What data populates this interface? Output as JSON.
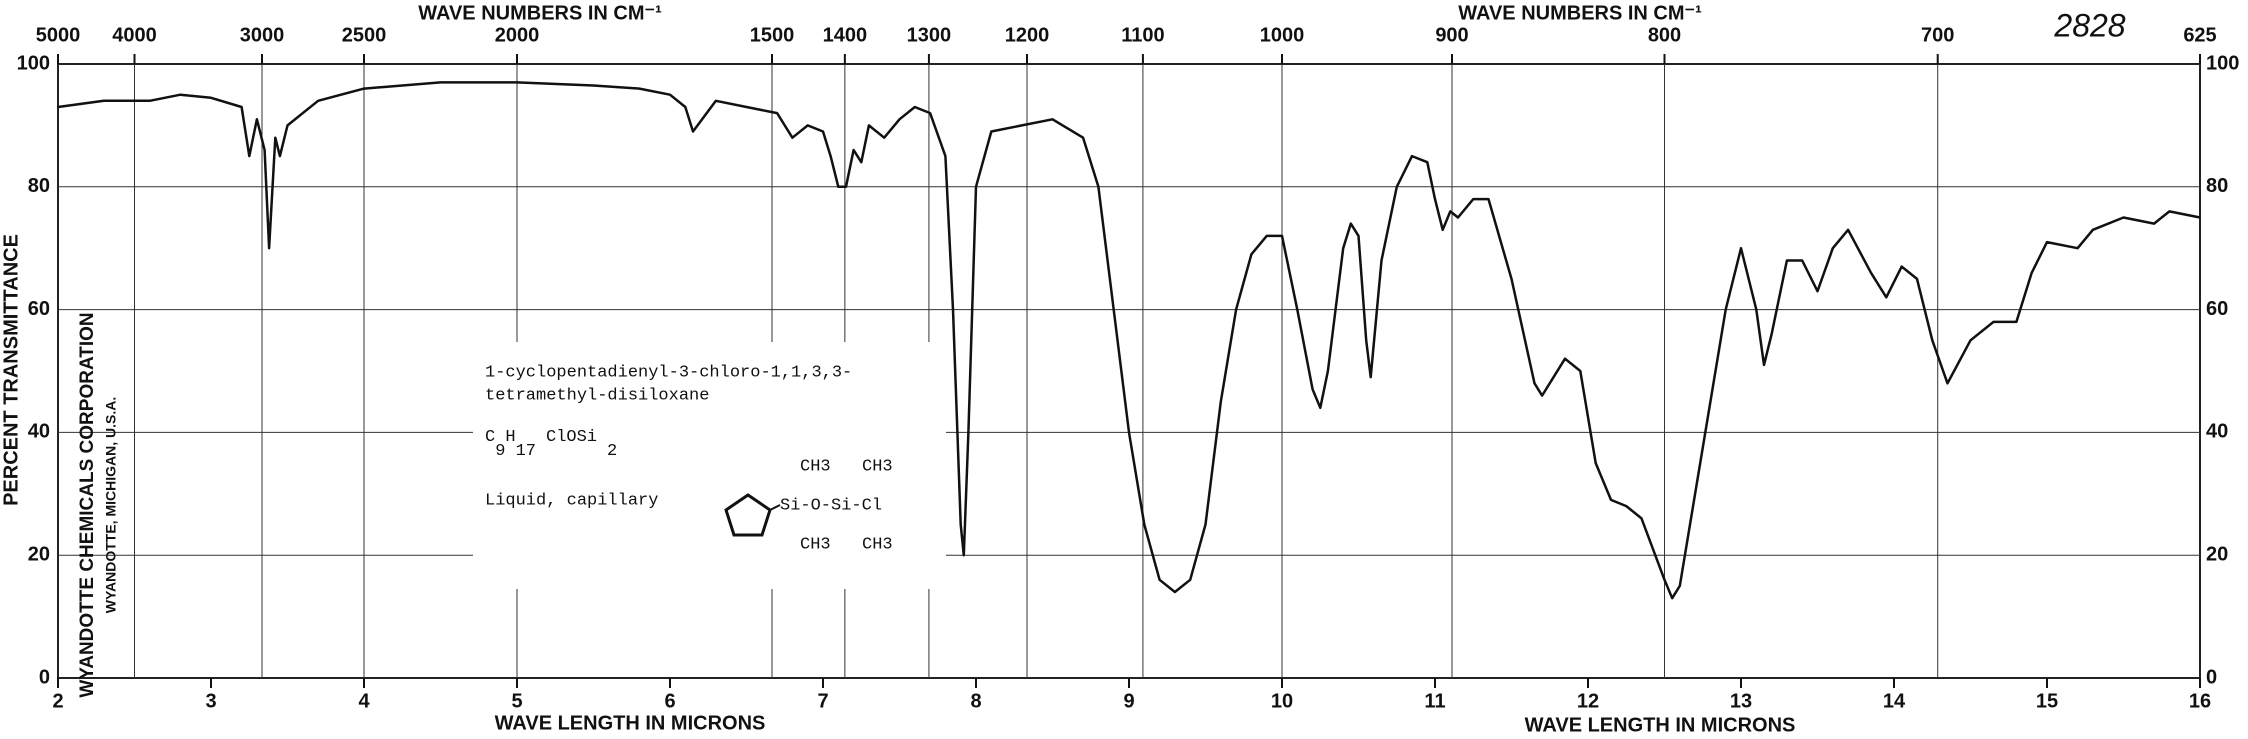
{
  "chart_data": {
    "type": "line",
    "color": "#111111",
    "x_label": "WAVE LENGTH IN MICRONS",
    "x_label_right": "WAVE LENGTH IN MICRONS",
    "top_label": "WAVE NUMBERS IN CM⁻¹",
    "top_label_right": "WAVE NUMBERS IN CM⁻¹",
    "y_label": "PERCENT TRANSMITTANCE",
    "spectrum_number": "2828",
    "company": "WYANDOTTE CHEMICALS CORPORATION",
    "company_location": "WYANDOTTE, MICHIGAN, U.S.A.",
    "sample": {
      "name_lines": [
        "1-cyclopentadienyl-3-chloro-1,1,3,3-",
        "tetramethyl-disiloxane"
      ],
      "formula": [
        "C",
        "9",
        "H",
        "17",
        "ClOSi",
        "2"
      ],
      "state": "Liquid, capillary",
      "structure": {
        "top_left": "CH3",
        "top_right": "CH3",
        "chain": "Si-O-Si-Cl",
        "bottom_left": "CH3",
        "bottom_right": "CH3"
      }
    },
    "xlim": [
      2,
      16
    ],
    "xticks": [
      2,
      3,
      4,
      5,
      6,
      7,
      8,
      9,
      10,
      11,
      12,
      13,
      14,
      15,
      16
    ],
    "top_ticks": [
      5000,
      4000,
      3000,
      2500,
      2000,
      1500,
      1400,
      1300,
      1200,
      1100,
      1000,
      900,
      800,
      700,
      625
    ],
    "ylim": [
      0,
      100
    ],
    "yticks": [
      0,
      20,
      40,
      60,
      80,
      100
    ],
    "grid": true,
    "x": [
      2.0,
      2.3,
      2.6,
      2.8,
      3.0,
      3.2,
      3.25,
      3.3,
      3.35,
      3.38,
      3.42,
      3.45,
      3.5,
      3.7,
      4.0,
      4.5,
      5.0,
      5.5,
      5.8,
      6.0,
      6.1,
      6.15,
      6.3,
      6.5,
      6.7,
      6.8,
      6.9,
      7.0,
      7.05,
      7.1,
      7.15,
      7.2,
      7.25,
      7.3,
      7.4,
      7.5,
      7.6,
      7.7,
      7.8,
      7.85,
      7.9,
      7.92,
      7.95,
      8.0,
      8.1,
      8.3,
      8.5,
      8.7,
      8.8,
      8.9,
      9.0,
      9.1,
      9.2,
      9.3,
      9.4,
      9.5,
      9.6,
      9.7,
      9.8,
      9.9,
      10.0,
      10.1,
      10.2,
      10.25,
      10.3,
      10.4,
      10.45,
      10.5,
      10.55,
      10.58,
      10.65,
      10.75,
      10.85,
      10.95,
      11.0,
      11.05,
      11.1,
      11.15,
      11.25,
      11.35,
      11.5,
      11.65,
      11.7,
      11.85,
      11.95,
      12.05,
      12.15,
      12.25,
      12.35,
      12.5,
      12.55,
      12.6,
      12.7,
      12.9,
      13.0,
      13.1,
      13.15,
      13.2,
      13.3,
      13.4,
      13.5,
      13.6,
      13.7,
      13.85,
      13.95,
      14.05,
      14.15,
      14.25,
      14.35,
      14.5,
      14.65,
      14.8,
      14.9,
      15.0,
      15.2,
      15.3,
      15.5,
      15.7,
      15.8,
      16.0
    ],
    "values": [
      93,
      94,
      94,
      95,
      94.5,
      93,
      85,
      91,
      86,
      70,
      88,
      85,
      90,
      94,
      96,
      97,
      97,
      96.5,
      96,
      95,
      93,
      89,
      94,
      93,
      92,
      88,
      90,
      89,
      85,
      80,
      80,
      86,
      84,
      90,
      88,
      91,
      93,
      92,
      85,
      60,
      25,
      20,
      40,
      80,
      89,
      90,
      91,
      88,
      80,
      60,
      40,
      25,
      16,
      14,
      16,
      25,
      45,
      60,
      69,
      72,
      72,
      60,
      47,
      44,
      50,
      70,
      74,
      72,
      55,
      49,
      68,
      80,
      85,
      84,
      78,
      73,
      76,
      75,
      78,
      78,
      65,
      48,
      46,
      52,
      50,
      35,
      29,
      28,
      26,
      16,
      13,
      15,
      30,
      60,
      70,
      60,
      51,
      56,
      68,
      68,
      63,
      70,
      73,
      66,
      62,
      67,
      65,
      55,
      48,
      55,
      58,
      58,
      66,
      71,
      70,
      73,
      75,
      74,
      76,
      75
    ]
  }
}
